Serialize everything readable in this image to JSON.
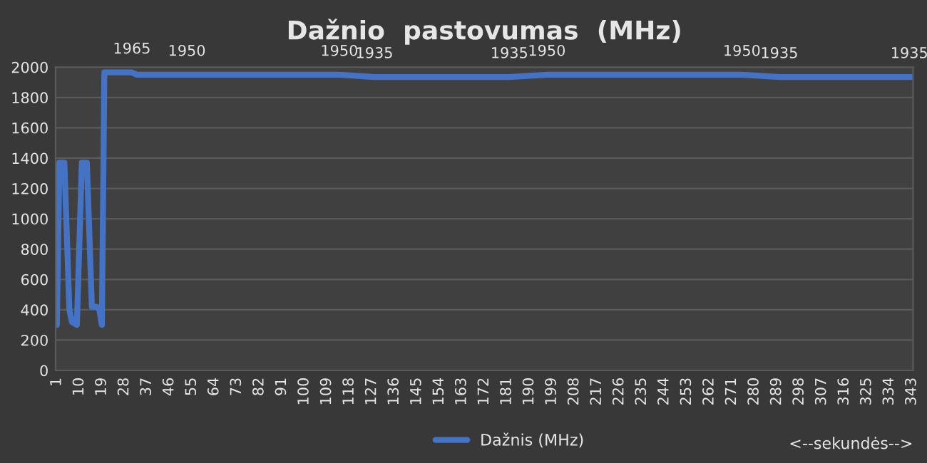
{
  "chart_data": {
    "type": "line",
    "title": "Dažnio  pastovumas  (MHz)",
    "xlabel": "<--sekundės-->",
    "series": [
      {
        "name": "Dažnis (MHz)",
        "color": "#4472c4",
        "x": [
          1,
          2,
          4,
          6,
          7,
          9,
          11,
          13,
          15,
          17,
          18,
          19,
          20,
          31,
          33,
          114,
          128,
          182,
          197,
          275,
          290,
          343
        ],
        "values": [
          300,
          1370,
          1370,
          400,
          320,
          300,
          1370,
          1370,
          420,
          420,
          400,
          300,
          1965,
          1965,
          1950,
          1950,
          1935,
          1935,
          1950,
          1950,
          1935,
          1935
        ]
      }
    ],
    "annotations": [
      {
        "text": "1965",
        "x": 31,
        "y": 1965
      },
      {
        "text": "1950",
        "x": 53,
        "y": 1950
      },
      {
        "text": "1950",
        "x": 114,
        "y": 1950
      },
      {
        "text": "1935",
        "x": 128,
        "y": 1935
      },
      {
        "text": "1935",
        "x": 182,
        "y": 1935
      },
      {
        "text": "1950",
        "x": 197,
        "y": 1950
      },
      {
        "text": "1950",
        "x": 275,
        "y": 1950
      },
      {
        "text": "1935",
        "x": 290,
        "y": 1935
      },
      {
        "text": "1935",
        "x": 342,
        "y": 1935
      }
    ],
    "xlim": [
      0.5,
      343.5
    ],
    "xticks": [
      1,
      10,
      19,
      28,
      37,
      46,
      55,
      64,
      73,
      82,
      91,
      100,
      109,
      118,
      127,
      136,
      145,
      154,
      163,
      172,
      181,
      190,
      199,
      208,
      217,
      226,
      235,
      244,
      253,
      262,
      271,
      280,
      289,
      298,
      307,
      316,
      325,
      334,
      343
    ],
    "ylim": [
      0,
      2000
    ],
    "yticks": [
      0,
      200,
      400,
      600,
      800,
      1000,
      1200,
      1400,
      1600,
      1800,
      2000
    ],
    "grid": "y",
    "legend": "bottom",
    "line_style": "solid",
    "marker": "none"
  }
}
